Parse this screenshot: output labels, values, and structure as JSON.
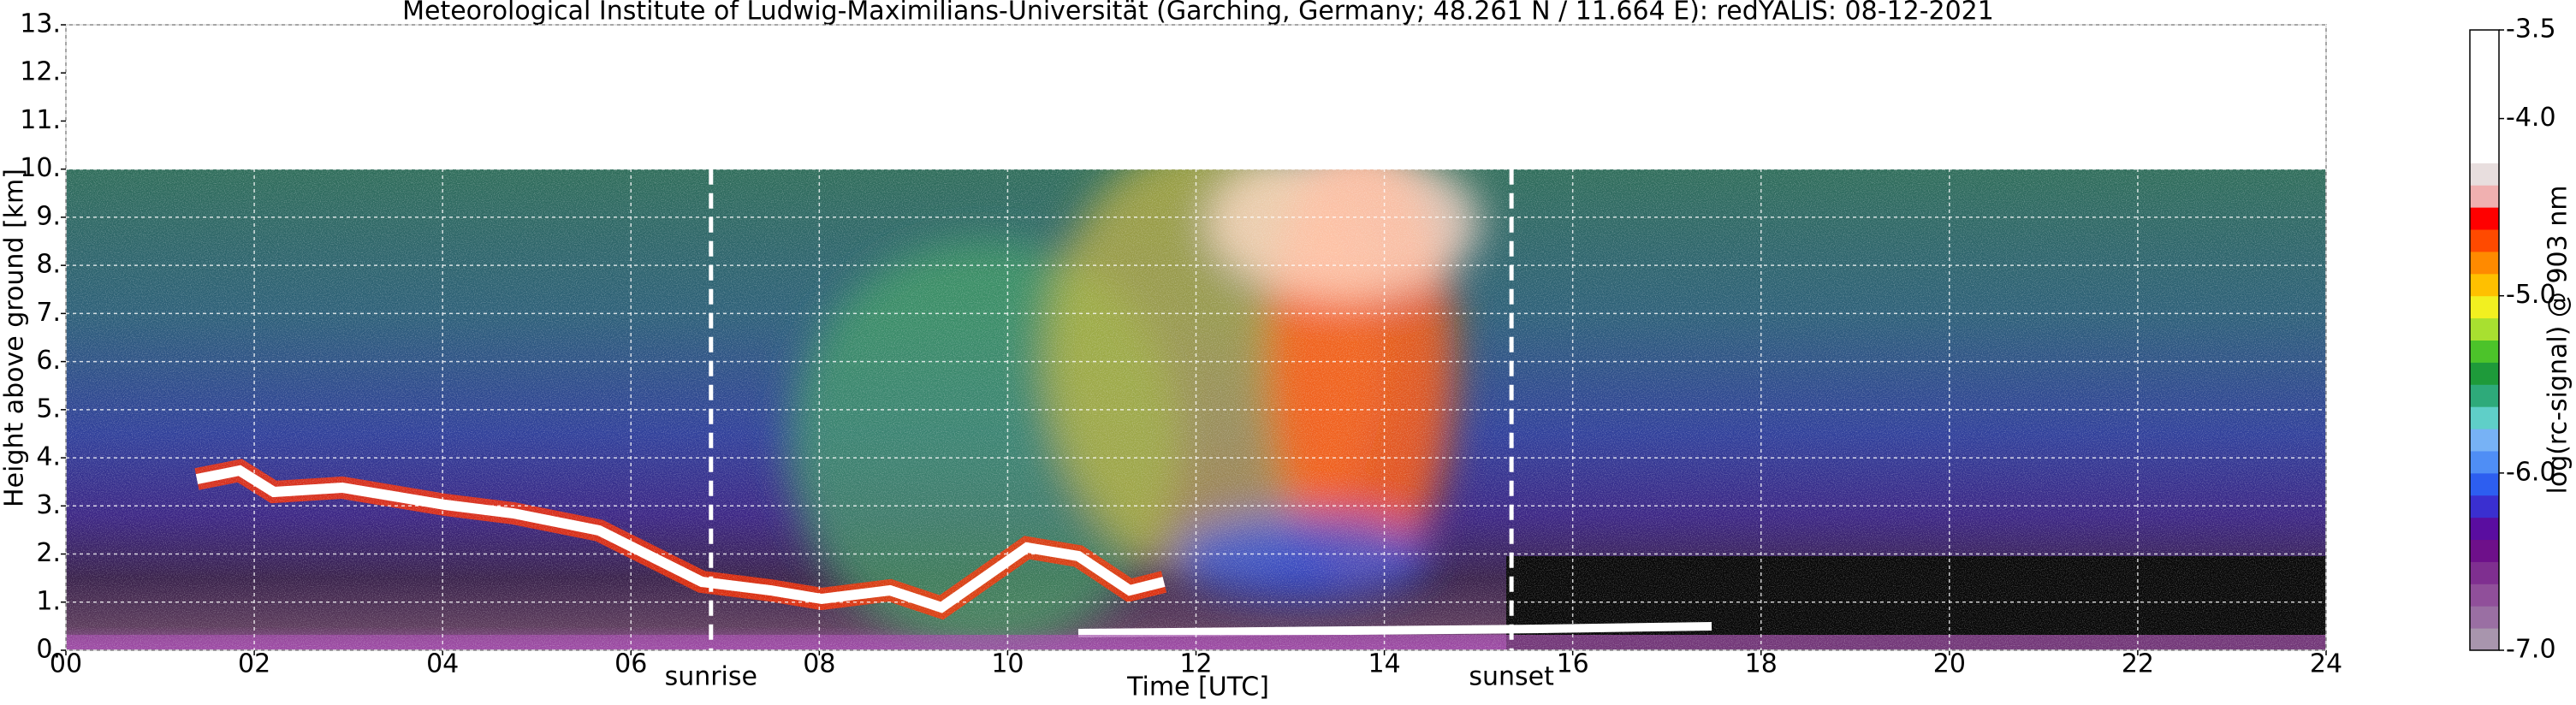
{
  "chart_data": {
    "type": "heatmap",
    "title": "Meteorological Institute of Ludwig-Maximilians-Universität (Garching, Germany; 48.261 N / 11.664 E):    redYALIS: 08-12-2021",
    "xlabel": "Time [UTC]",
    "ylabel": "Height above ground [km]",
    "xlim": [
      0,
      24
    ],
    "xticks": [
      {
        "value": 0,
        "label": "00"
      },
      {
        "value": 2,
        "label": "02"
      },
      {
        "value": 4,
        "label": "04"
      },
      {
        "value": 6,
        "label": "06"
      },
      {
        "value": 8,
        "label": "08"
      },
      10,
      12,
      14,
      16,
      18,
      20,
      22,
      24
    ],
    "ylim": [
      0,
      13
    ],
    "yticks": [
      {
        "value": 0,
        "label": "0."
      },
      {
        "value": 1,
        "label": "1."
      },
      {
        "value": 2,
        "label": "2."
      },
      {
        "value": 3,
        "label": "3."
      },
      {
        "value": 4,
        "label": "4."
      },
      {
        "value": 5,
        "label": "5."
      },
      {
        "value": 6,
        "label": "6."
      },
      {
        "value": 7,
        "label": "7."
      },
      {
        "value": 8,
        "label": "8."
      },
      {
        "value": 9,
        "label": "9."
      },
      {
        "value": 10,
        "label": "10."
      },
      {
        "value": 11,
        "label": "11."
      },
      {
        "value": 12,
        "label": "12."
      },
      {
        "value": 13,
        "label": "13."
      }
    ],
    "grid": true,
    "annotations": [
      {
        "label": "sunrise",
        "x": 6.85
      },
      {
        "label": "sunset",
        "x": 15.35
      }
    ],
    "colorbar": {
      "label": "log(rc-signal) @ 903 nm",
      "clim": [
        -7.0,
        -3.5
      ],
      "ticks": [
        {
          "value": -7.0,
          "label": "-7.0"
        },
        {
          "value": -6.0,
          "label": "-6.0"
        },
        {
          "value": -5.0,
          "label": "-5.0"
        },
        {
          "value": -4.0,
          "label": "-4.0"
        },
        {
          "value": -3.5,
          "label": "-3.5"
        }
      ],
      "colors": [
        "#a895ad",
        "#9a6fa3",
        "#904f9a",
        "#7f2f90",
        "#6e108a",
        "#5a0da0",
        "#3a2fd0",
        "#2d5ef0",
        "#4f8ef5",
        "#77b2f5",
        "#5fcfc8",
        "#2eaa7a",
        "#1e9a3a",
        "#4cc32a",
        "#a8e030",
        "#f2f020",
        "#ffc000",
        "#ff8a00",
        "#ff4a00",
        "#ff0000",
        "#f0b0b0",
        "#e8dede",
        "#ffffff",
        "#ffffff",
        "#ffffff",
        "#ffffff",
        "#ffffff",
        "#ffffff"
      ]
    }
  }
}
